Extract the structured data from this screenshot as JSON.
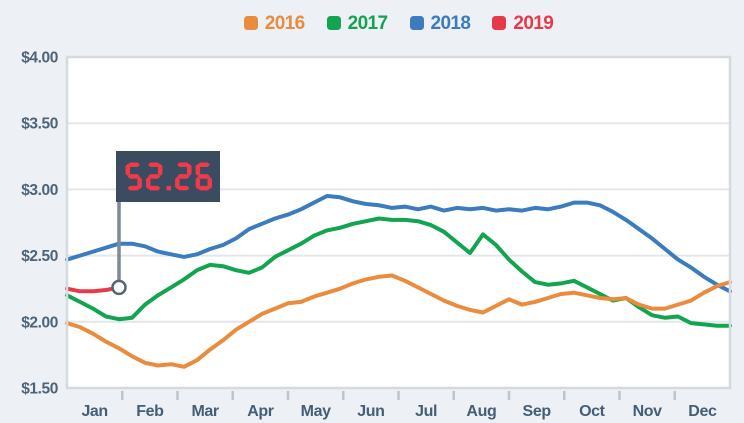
{
  "page": {
    "background": "#edf0f5"
  },
  "legend": {
    "items": [
      {
        "label": "2016",
        "color": "#ea8b3d"
      },
      {
        "label": "2017",
        "color": "#12a44f"
      },
      {
        "label": "2018",
        "color": "#3a7cbd"
      },
      {
        "label": "2019",
        "color": "#e63a48"
      }
    ]
  },
  "annotation": {
    "value": "$2.26",
    "flag_color": "#3b4c60",
    "digit_color": "#ee3a4b",
    "pole_color": "#7d8a9c",
    "marker_fill": "#ffffff",
    "marker_stroke": "#54657a"
  },
  "chart_data": {
    "type": "line",
    "title": "",
    "xlabel": "",
    "ylabel": "",
    "grid": true,
    "legend_position": "top",
    "y_range": [
      1.5,
      4.0
    ],
    "y_ticks": [
      "$4.00",
      "$3.50",
      "$3.00",
      "$2.50",
      "$2.00",
      "$1.50"
    ],
    "months": [
      "Jan",
      "Feb",
      "Mar",
      "Apr",
      "May",
      "Jun",
      "Jul",
      "Aug",
      "Sep",
      "Oct",
      "Nov",
      "Dec"
    ],
    "x_resolution": "weekly",
    "series": [
      {
        "name": "2016",
        "color": "#ea8b3d",
        "values": [
          1.99,
          1.96,
          1.91,
          1.85,
          1.8,
          1.74,
          1.69,
          1.67,
          1.68,
          1.66,
          1.71,
          1.79,
          1.86,
          1.94,
          2.0,
          2.06,
          2.1,
          2.14,
          2.15,
          2.19,
          2.22,
          2.25,
          2.29,
          2.32,
          2.34,
          2.35,
          2.31,
          2.26,
          2.21,
          2.16,
          2.12,
          2.09,
          2.07,
          2.12,
          2.17,
          2.13,
          2.15,
          2.18,
          2.21,
          2.22,
          2.2,
          2.18,
          2.17,
          2.18,
          2.13,
          2.1,
          2.1,
          2.13,
          2.16,
          2.22,
          2.27,
          2.3
        ]
      },
      {
        "name": "2017",
        "color": "#12a44f",
        "values": [
          2.2,
          2.15,
          2.1,
          2.04,
          2.02,
          2.03,
          2.13,
          2.2,
          2.26,
          2.32,
          2.39,
          2.43,
          2.42,
          2.39,
          2.37,
          2.41,
          2.49,
          2.54,
          2.59,
          2.65,
          2.69,
          2.71,
          2.74,
          2.76,
          2.78,
          2.77,
          2.77,
          2.76,
          2.73,
          2.68,
          2.6,
          2.52,
          2.66,
          2.58,
          2.47,
          2.38,
          2.3,
          2.28,
          2.29,
          2.31,
          2.26,
          2.21,
          2.16,
          2.18,
          2.11,
          2.05,
          2.03,
          2.04,
          1.99,
          1.98,
          1.97,
          1.97
        ]
      },
      {
        "name": "2018",
        "color": "#3a7cbd",
        "values": [
          2.47,
          2.5,
          2.53,
          2.56,
          2.59,
          2.59,
          2.57,
          2.53,
          2.51,
          2.49,
          2.51,
          2.55,
          2.58,
          2.63,
          2.7,
          2.74,
          2.78,
          2.81,
          2.85,
          2.9,
          2.95,
          2.94,
          2.91,
          2.89,
          2.88,
          2.86,
          2.87,
          2.85,
          2.87,
          2.84,
          2.86,
          2.85,
          2.86,
          2.84,
          2.85,
          2.84,
          2.86,
          2.85,
          2.87,
          2.9,
          2.9,
          2.88,
          2.83,
          2.77,
          2.7,
          2.63,
          2.55,
          2.47,
          2.41,
          2.34,
          2.28,
          2.23
        ]
      },
      {
        "name": "2019",
        "color": "#e63a48",
        "values": [
          2.25,
          2.23,
          2.23,
          2.24,
          2.26
        ],
        "endpoint_marker": true,
        "endpoint_label": "$2.26"
      }
    ]
  }
}
